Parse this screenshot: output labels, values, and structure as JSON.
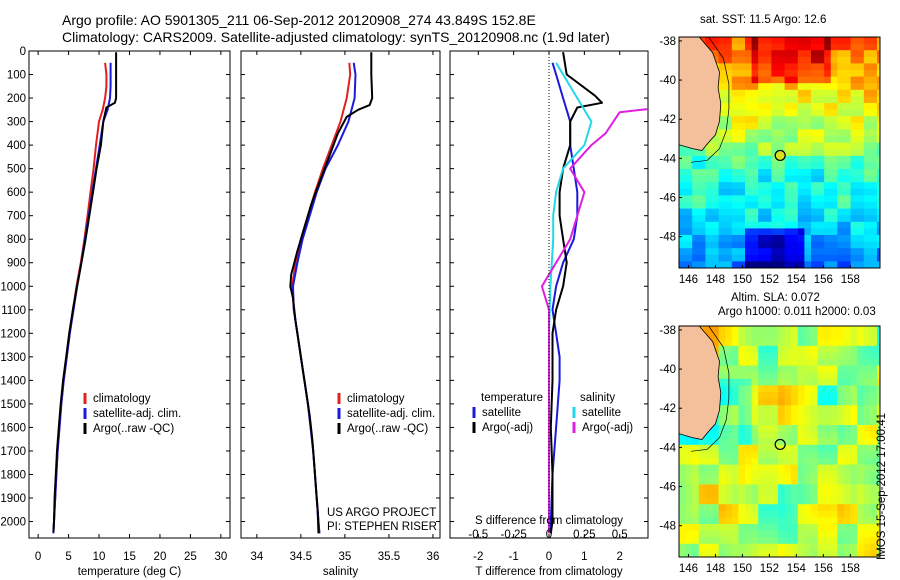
{
  "header": {
    "line1": "Argo profile: AO 5901305_211 06-Sep-2012 20120908_274 43.849S 152.8E",
    "line2": "Climatology: CARS2009. Satellite-adjusted climatology: synTS_20120908.nc (1.9d later)"
  },
  "project_line1": "US ARGO PROJECT",
  "project_line2": "PI: STEPHEN RISER",
  "timestamp": "IMOS 15-Sep-2012 17:00:41",
  "colors": {
    "climatology": "#e02020",
    "satellite": "#1a1adc",
    "argo": "#000000",
    "sat_salinity": "#22d8e6",
    "argo_salinity": "#e020e0"
  },
  "depth_ticks": [
    0,
    100,
    200,
    300,
    400,
    500,
    600,
    700,
    800,
    900,
    1000,
    1100,
    1200,
    1300,
    1400,
    1500,
    1600,
    1700,
    1800,
    1900,
    2000
  ],
  "chart_data": [
    {
      "type": "line",
      "xlabel": "temperature (deg C)",
      "xlim": [
        -1.5,
        31.5
      ],
      "ylim": [
        2070,
        0
      ],
      "xticks": [
        0,
        5,
        10,
        15,
        20,
        25,
        30
      ],
      "series": [
        {
          "name": "climatology",
          "color": "#e02020",
          "width": 2,
          "points": [
            [
              11,
              50
            ],
            [
              11.2,
              100
            ],
            [
              11.2,
              150
            ],
            [
              11,
              200
            ],
            [
              10.6,
              250
            ],
            [
              10,
              300
            ],
            [
              9.5,
              400
            ],
            [
              9.1,
              500
            ],
            [
              8.6,
              600
            ],
            [
              8.1,
              700
            ],
            [
              7.6,
              800
            ],
            [
              7,
              900
            ],
            [
              6.3,
              1000
            ],
            [
              5.7,
              1100
            ],
            [
              5.2,
              1200
            ],
            [
              4.7,
              1300
            ],
            [
              4.2,
              1400
            ],
            [
              3.8,
              1500
            ],
            [
              3.5,
              1600
            ],
            [
              3.2,
              1700
            ],
            [
              3,
              1800
            ],
            [
              2.8,
              1900
            ],
            [
              2.6,
              2000
            ],
            [
              2.5,
              2050
            ]
          ]
        },
        {
          "name": "satellite-adj. clim.",
          "color": "#1a1adc",
          "width": 2,
          "points": [
            [
              11.9,
              50
            ],
            [
              11.9,
              100
            ],
            [
              11.9,
              150
            ],
            [
              11.8,
              200
            ],
            [
              11.4,
              250
            ],
            [
              10.7,
              300
            ],
            [
              10.1,
              400
            ],
            [
              9.5,
              500
            ],
            [
              8.9,
              600
            ],
            [
              8.3,
              700
            ],
            [
              7.7,
              800
            ],
            [
              7.1,
              900
            ],
            [
              6.4,
              1000
            ],
            [
              5.8,
              1100
            ],
            [
              5.2,
              1200
            ],
            [
              4.7,
              1300
            ],
            [
              4.2,
              1400
            ],
            [
              3.8,
              1500
            ],
            [
              3.5,
              1600
            ],
            [
              3.2,
              1700
            ],
            [
              3,
              1800
            ],
            [
              2.8,
              1900
            ],
            [
              2.6,
              2000
            ],
            [
              2.5,
              2050
            ]
          ]
        },
        {
          "name": "Argo(..raw -QC)",
          "color": "#000000",
          "width": 2,
          "points": [
            [
              12.8,
              5
            ],
            [
              12.8,
              100
            ],
            [
              12.8,
              200
            ],
            [
              12.6,
              220
            ],
            [
              11.2,
              240
            ],
            [
              10.7,
              300
            ],
            [
              10.3,
              400
            ],
            [
              9.6,
              500
            ],
            [
              9,
              600
            ],
            [
              8.4,
              700
            ],
            [
              7.8,
              800
            ],
            [
              7.1,
              900
            ],
            [
              6.4,
              1000
            ],
            [
              5.7,
              1100
            ],
            [
              5.1,
              1200
            ],
            [
              4.6,
              1300
            ],
            [
              4.1,
              1400
            ],
            [
              3.7,
              1500
            ],
            [
              3.4,
              1600
            ],
            [
              3.1,
              1700
            ],
            [
              2.9,
              1800
            ],
            [
              2.7,
              1900
            ],
            [
              2.6,
              2000
            ],
            [
              2.5,
              2045
            ]
          ]
        }
      ],
      "legend": [
        "climatology",
        "satellite-adj. clim.",
        "Argo(..raw -QC)"
      ]
    },
    {
      "type": "line",
      "xlabel": "salinity",
      "xlim": [
        33.82,
        36.08
      ],
      "ylim": [
        2070,
        0
      ],
      "xticks": [
        34,
        34.5,
        35,
        35.5,
        36
      ],
      "xticklabels": [
        "34",
        "34.5",
        "35",
        "35.5",
        "36"
      ],
      "series": [
        {
          "name": "climatology",
          "color": "#e02020",
          "width": 2,
          "points": [
            [
              35.05,
              50
            ],
            [
              35.06,
              100
            ],
            [
              35.02,
              200
            ],
            [
              34.95,
              300
            ],
            [
              34.85,
              400
            ],
            [
              34.75,
              500
            ],
            [
              34.66,
              600
            ],
            [
              34.58,
              700
            ],
            [
              34.5,
              800
            ],
            [
              34.44,
              900
            ],
            [
              34.4,
              1000
            ],
            [
              34.42,
              1100
            ],
            [
              34.46,
              1200
            ],
            [
              34.5,
              1300
            ],
            [
              34.54,
              1400
            ],
            [
              34.58,
              1500
            ],
            [
              34.61,
              1600
            ],
            [
              34.64,
              1700
            ],
            [
              34.66,
              1800
            ],
            [
              34.68,
              1900
            ],
            [
              34.7,
              2000
            ],
            [
              34.71,
              2050
            ]
          ]
        },
        {
          "name": "satellite-adj. clim.",
          "color": "#1a1adc",
          "width": 2,
          "points": [
            [
              35.1,
              50
            ],
            [
              35.12,
              100
            ],
            [
              35.11,
              200
            ],
            [
              35.04,
              300
            ],
            [
              34.92,
              400
            ],
            [
              34.78,
              500
            ],
            [
              34.68,
              600
            ],
            [
              34.6,
              700
            ],
            [
              34.52,
              800
            ],
            [
              34.46,
              900
            ],
            [
              34.41,
              1000
            ],
            [
              34.42,
              1100
            ],
            [
              34.46,
              1200
            ],
            [
              34.5,
              1300
            ],
            [
              34.54,
              1400
            ],
            [
              34.58,
              1500
            ],
            [
              34.61,
              1600
            ],
            [
              34.64,
              1700
            ],
            [
              34.66,
              1800
            ],
            [
              34.68,
              1900
            ],
            [
              34.7,
              2000
            ],
            [
              34.71,
              2050
            ]
          ]
        },
        {
          "name": "Argo(..raw -QC)",
          "color": "#000000",
          "width": 2,
          "points": [
            [
              35.3,
              5
            ],
            [
              35.3,
              100
            ],
            [
              35.31,
              200
            ],
            [
              35.28,
              230
            ],
            [
              35.15,
              250
            ],
            [
              35.02,
              280
            ],
            [
              34.92,
              350
            ],
            [
              34.82,
              450
            ],
            [
              34.72,
              550
            ],
            [
              34.62,
              650
            ],
            [
              34.54,
              750
            ],
            [
              34.46,
              850
            ],
            [
              34.39,
              950
            ],
            [
              34.38,
              1000
            ],
            [
              34.41,
              1050
            ],
            [
              34.44,
              1150
            ],
            [
              34.48,
              1250
            ],
            [
              34.52,
              1350
            ],
            [
              34.56,
              1450
            ],
            [
              34.6,
              1550
            ],
            [
              34.63,
              1650
            ],
            [
              34.65,
              1750
            ],
            [
              34.67,
              1850
            ],
            [
              34.69,
              1950
            ],
            [
              34.7,
              2050
            ]
          ]
        }
      ],
      "legend": [
        "climatology",
        "satellite-adj. clim.",
        "Argo(..raw -QC)"
      ]
    },
    {
      "type": "line",
      "xlabel": "T difference from climatology",
      "xlabel2": "S difference from climatology",
      "xlim": [
        -2.8,
        2.8
      ],
      "ylim": [
        2070,
        0
      ],
      "xticks": [
        -2,
        -1,
        0,
        1,
        2
      ],
      "xticks_S": [
        -0.5,
        -0.25,
        0,
        0.25,
        0.5
      ],
      "xticklabels_S": [
        "-0.5",
        "-0.25",
        "0",
        "0.25",
        "0.5"
      ],
      "series": [
        {
          "name": "satellite",
          "group": "temperature",
          "color": "#1a1adc",
          "width": 2,
          "points": [
            [
              0.1,
              50
            ],
            [
              0.2,
              100
            ],
            [
              0.4,
              200
            ],
            [
              0.6,
              300
            ],
            [
              0.6,
              400
            ],
            [
              0.7,
              500
            ],
            [
              0.8,
              600
            ],
            [
              0.8,
              700
            ],
            [
              0.7,
              800
            ],
            [
              0.4,
              900
            ],
            [
              0.2,
              1000
            ],
            [
              0.1,
              1100
            ],
            [
              0.2,
              1200
            ],
            [
              0.3,
              1300
            ],
            [
              0.3,
              1400
            ],
            [
              0.2,
              1600
            ],
            [
              0.1,
              1800
            ],
            [
              0.05,
              2000
            ],
            [
              0.05,
              2050
            ]
          ]
        },
        {
          "name": "Argo(-adj)",
          "group": "temperature",
          "color": "#000000",
          "width": 2,
          "points": [
            [
              0.4,
              5
            ],
            [
              0.5,
              100
            ],
            [
              1.3,
              190
            ],
            [
              1.5,
              220
            ],
            [
              0.8,
              240
            ],
            [
              0.6,
              300
            ],
            [
              0.6,
              400
            ],
            [
              0.4,
              500
            ],
            [
              0.3,
              600
            ],
            [
              0.3,
              700
            ],
            [
              0.4,
              800
            ],
            [
              0.5,
              900
            ],
            [
              0.4,
              1000
            ],
            [
              0.2,
              1100
            ],
            [
              0.1,
              1200
            ],
            [
              0.1,
              1400
            ],
            [
              0.05,
              1600
            ],
            [
              0.1,
              1800
            ],
            [
              0.1,
              2000
            ],
            [
              0.05,
              2050
            ]
          ]
        },
        {
          "name": "satellite",
          "group": "salinity",
          "color": "#22d8e6",
          "width": 2,
          "points": [
            [
              0.05,
              50
            ],
            [
              0.1,
              100
            ],
            [
              0.2,
              200
            ],
            [
              0.3,
              300
            ],
            [
              0.25,
              400
            ],
            [
              0.1,
              500
            ],
            [
              0.05,
              600
            ],
            [
              0.03,
              700
            ],
            [
              0.03,
              800
            ],
            [
              0.02,
              900
            ],
            [
              0.01,
              1000
            ],
            [
              0,
              1200
            ],
            [
              0,
              1400
            ],
            [
              0,
              1600
            ],
            [
              0,
              1800
            ],
            [
              0,
              2000
            ],
            [
              0,
              2050
            ]
          ]
        },
        {
          "name": "Argo(-adj)",
          "group": "salinity",
          "color": "#e020e0",
          "width": 2,
          "points": [
            [
              0.7,
              5
            ],
            [
              0.8,
              100
            ],
            [
              0.9,
              190
            ],
            [
              1.1,
              220
            ],
            [
              0.5,
              260
            ],
            [
              0.4,
              350
            ],
            [
              0.3,
              400
            ],
            [
              0.15,
              500
            ],
            [
              0.25,
              600
            ],
            [
              0.2,
              700
            ],
            [
              0.15,
              800
            ],
            [
              0.05,
              900
            ],
            [
              -0.05,
              1000
            ],
            [
              0,
              1100
            ],
            [
              0,
              1200
            ],
            [
              0,
              1400
            ],
            [
              0,
              1600
            ],
            [
              0,
              1800
            ],
            [
              0,
              2000
            ],
            [
              0,
              2050
            ]
          ]
        }
      ],
      "legend_temperature": "temperature",
      "legend_salinity": "salinity",
      "legend_items": [
        "satellite",
        "Argo(-adj)"
      ]
    },
    {
      "type": "heatmap",
      "title": "sat. SST: 11.5 Argo: 12.6",
      "xlim": [
        145.3,
        160.2
      ],
      "ylim": [
        -49.6,
        -37.8
      ],
      "xticks": [
        146,
        148,
        150,
        152,
        154,
        156,
        158
      ],
      "yticks": [
        -38,
        -40,
        -42,
        -44,
        -46,
        -48
      ],
      "argo_position": [
        152.8,
        -43.85
      ]
    },
    {
      "type": "heatmap",
      "title": "Altim. SLA: 0.072",
      "subtitle": "Argo h1000: 0.011 h2000: 0.03",
      "xlim": [
        145.3,
        160.2
      ],
      "ylim": [
        -49.6,
        -37.8
      ],
      "xticks": [
        146,
        148,
        150,
        152,
        154,
        156,
        158
      ],
      "yticks": [
        -38,
        -40,
        -42,
        -44,
        -46,
        -48
      ],
      "argo_position": [
        152.8,
        -43.85
      ]
    }
  ]
}
